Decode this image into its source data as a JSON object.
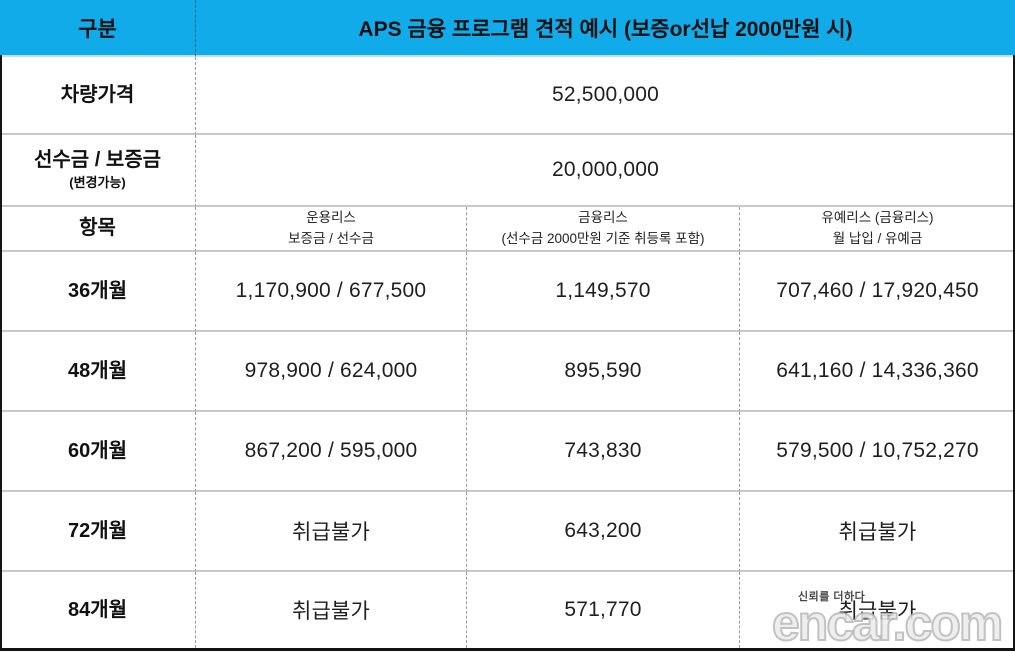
{
  "colors": {
    "header_bg": "#10abe8",
    "grid_line": "#c8c8c8",
    "frame": "#141414"
  },
  "header": {
    "category_label": "구분",
    "title": "APS 금융 프로그램 견적 예시 (보증or선납 2000만원 시)"
  },
  "summary_rows": [
    {
      "label": "차량가격",
      "sublabel": "",
      "value": "52,500,000"
    },
    {
      "label": "선수금 / 보증금",
      "sublabel": "(변경가능)",
      "value": "20,000,000"
    }
  ],
  "columns_header": {
    "label": "항목",
    "columns": [
      {
        "line1": "운용리스",
        "line2": "보증금 / 선수금"
      },
      {
        "line1": "금융리스",
        "line2": "(선수금 2000만원 기준 취등록 포함)"
      },
      {
        "line1": "유예리스 (금융리스)",
        "line2": "월 납입 / 유예금"
      }
    ]
  },
  "rows": [
    {
      "term": "36개월",
      "values": [
        "1,170,900 / 677,500",
        "1,149,570",
        "707,460 / 17,920,450"
      ]
    },
    {
      "term": "48개월",
      "values": [
        "978,900 / 624,000",
        "895,590",
        "641,160 / 14,336,360"
      ]
    },
    {
      "term": "60개월",
      "values": [
        "867,200 / 595,000",
        "743,830",
        "579,500 / 10,752,270"
      ]
    },
    {
      "term": "72개월",
      "values": [
        "취급불가",
        "643,200",
        "취급불가"
      ]
    },
    {
      "term": "84개월",
      "values": [
        "취급불가",
        "571,770",
        "취급불가"
      ]
    }
  ],
  "watermark": {
    "tagline": "신뢰를 더하다",
    "brand": "encar.com"
  }
}
